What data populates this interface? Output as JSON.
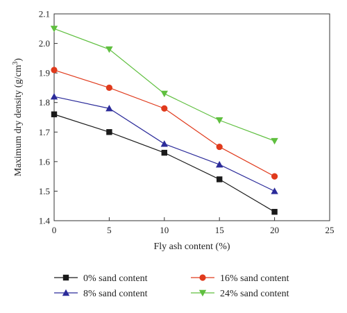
{
  "chart_data": {
    "type": "line",
    "xlabel": "Fly ash content (%)",
    "ylabel_main": "Maximum dry density (g/cm",
    "ylabel_sup": "3",
    "ylabel_close": ")",
    "xlim": [
      0,
      25
    ],
    "ylim": [
      1.4,
      2.1
    ],
    "x_ticks": [
      "0",
      "5",
      "10",
      "15",
      "20",
      "25"
    ],
    "y_ticks": [
      "1.4",
      "1.5",
      "1.6",
      "1.7",
      "1.8",
      "1.9",
      "2.0",
      "2.1"
    ],
    "grid": false,
    "legend_position": "bottom",
    "x": [
      0,
      5,
      10,
      15,
      20
    ],
    "series": [
      {
        "name": "0% sand content",
        "values": [
          1.76,
          1.7,
          1.63,
          1.54,
          1.43
        ],
        "color": "#1a1a1a",
        "marker": "square"
      },
      {
        "name": "8% sand content",
        "values": [
          1.82,
          1.78,
          1.66,
          1.59,
          1.5
        ],
        "color": "#2b2b9a",
        "marker": "triangle-up"
      },
      {
        "name": "16% sand content",
        "values": [
          1.91,
          1.85,
          1.78,
          1.65,
          1.55
        ],
        "color": "#e03a1c",
        "marker": "circle"
      },
      {
        "name": "24% sand content",
        "values": [
          2.05,
          1.98,
          1.83,
          1.74,
          1.67
        ],
        "color": "#5fbf3f",
        "marker": "triangle-down"
      }
    ]
  }
}
